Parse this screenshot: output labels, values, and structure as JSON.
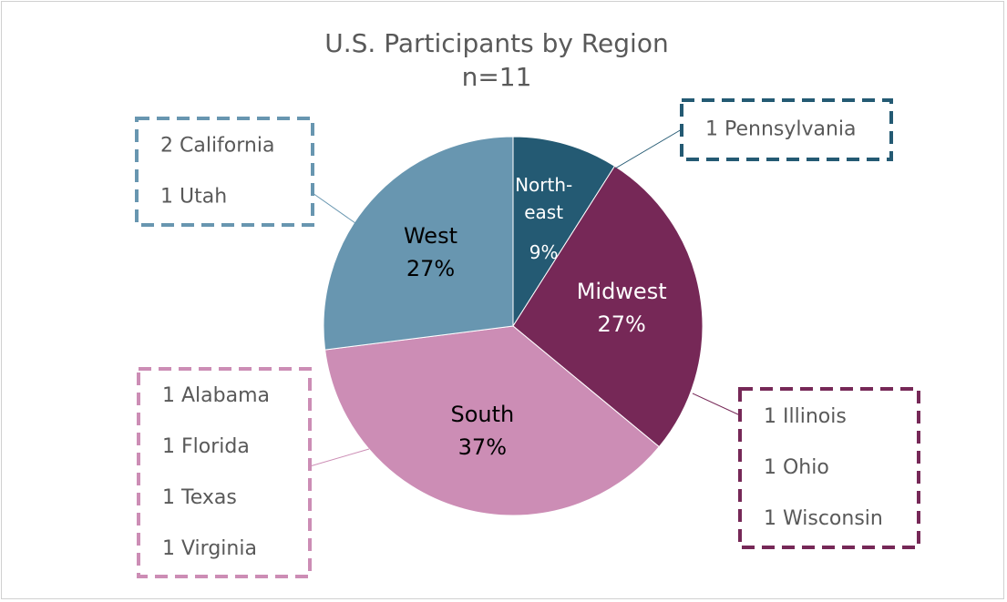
{
  "chart_data": {
    "type": "pie",
    "title": "U.S. Participants by Region",
    "subtitle": "n=11",
    "categories": [
      "North-east",
      "Midwest",
      "South",
      "West"
    ],
    "values": [
      9,
      27,
      37,
      27
    ],
    "value_labels": [
      "9%",
      "27%",
      "37%",
      "27%"
    ],
    "colors": [
      "#245a73",
      "#762857",
      "#cc8db5",
      "#6896b0"
    ],
    "callouts": [
      [
        "1 Pennsylvania"
      ],
      [
        "1 Illinois",
        "1 Ohio",
        "1 Wisconsin"
      ],
      [
        "1 Alabama",
        "1 Florida",
        "1 Texas",
        "1 Virginia"
      ],
      [
        "2 California",
        "1 Utah"
      ]
    ]
  }
}
